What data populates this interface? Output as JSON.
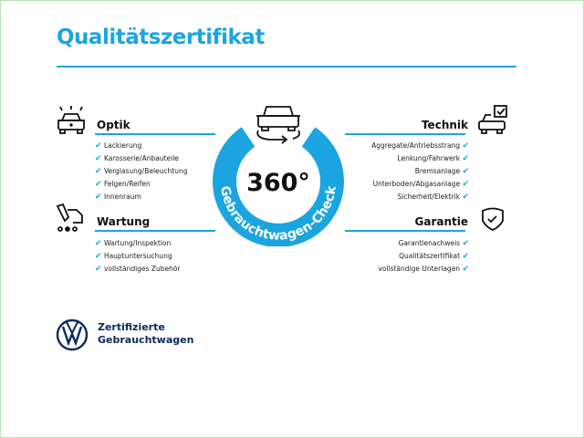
{
  "title": "Qualitätszertifikat",
  "check_mark": "✔",
  "accent_color": "#1ba5e0",
  "ring": {
    "center_text": "360°",
    "arc_text": "Gebrauchtwagen-Check"
  },
  "sections": {
    "optik": {
      "title": "Optik",
      "icon": "car-lights-icon",
      "items": [
        "Lackierung",
        "Karosserie/Anbauteile",
        "Verglasung/Beleuchtung",
        "Felgen/Reifen",
        "Innenraum"
      ]
    },
    "wartung": {
      "title": "Wartung",
      "icon": "service-tools-icon",
      "items": [
        "Wartung/Inspektion",
        "Hauptuntersuchung",
        "vollständiges Zubehör"
      ]
    },
    "technik": {
      "title": "Technik",
      "icon": "car-checkbox-icon",
      "items": [
        "Aggregate/Antriebsstrang",
        "Lenkung/Fahrwerk",
        "Bremsanlage",
        "Unterboden/Abgasanlage",
        "Sicherheit/Elektrik"
      ]
    },
    "garantie": {
      "title": "Garantie",
      "icon": "shield-check-icon",
      "items": [
        "Garantienachweis",
        "Qualitätszertifikat",
        "vollständige Unterlagen"
      ]
    }
  },
  "brand": {
    "line1": "Zertifizierte",
    "line2": "Gebrauchtwagen",
    "logo": "vw-logo"
  }
}
